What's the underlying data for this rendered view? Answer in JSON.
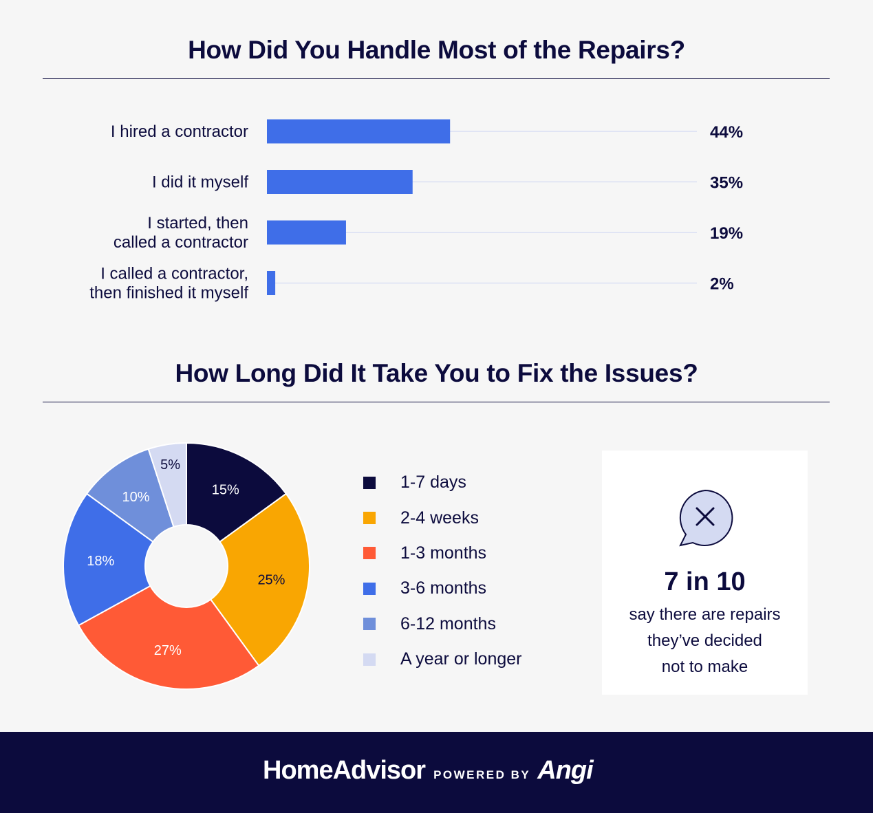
{
  "chart_data": [
    {
      "type": "bar",
      "orientation": "horizontal",
      "title": "How Did You Handle Most of the Repairs?",
      "categories": [
        [
          "I hired a contractor"
        ],
        [
          "I did it myself"
        ],
        [
          "I started, then",
          "called a contractor"
        ],
        [
          "I called a contractor,",
          "then finished it myself"
        ]
      ],
      "values": [
        44,
        35,
        19,
        2
      ],
      "value_labels": [
        "44%",
        "35%",
        "19%",
        "2%"
      ],
      "unit": "%",
      "xlim": [
        0,
        100
      ],
      "color": "#3f6ee8"
    },
    {
      "type": "pie",
      "title": "How Long Did It Take You to Fix the Issues?",
      "categories": [
        "1-7 days",
        "2-4 weeks",
        "1-3 months",
        "3-6 months",
        "6-12 months",
        "A year or longer"
      ],
      "values": [
        15,
        25,
        27,
        18,
        10,
        5
      ],
      "value_labels": [
        "15%",
        "25%",
        "27%",
        "18%",
        "10%",
        "5%"
      ],
      "colors": [
        "#0c0b3d",
        "#f9a602",
        "#ff5a36",
        "#3f6ee8",
        "#6f8fda",
        "#d4daf2"
      ],
      "label_colors": [
        "#ffffff",
        "#0c0b3d",
        "#ffffff",
        "#ffffff",
        "#ffffff",
        "#0c0b3d"
      ],
      "donut": true,
      "legend_position": "right"
    }
  ],
  "stat": {
    "icon": "x-speech-bubble-icon",
    "number": "7 in 10",
    "text_lines": [
      "say there are repairs",
      "they’ve decided",
      "not to make"
    ]
  },
  "footer": {
    "brand": "HomeAdvisor",
    "powered_by": "POWERED BY",
    "partner": "Angi"
  }
}
